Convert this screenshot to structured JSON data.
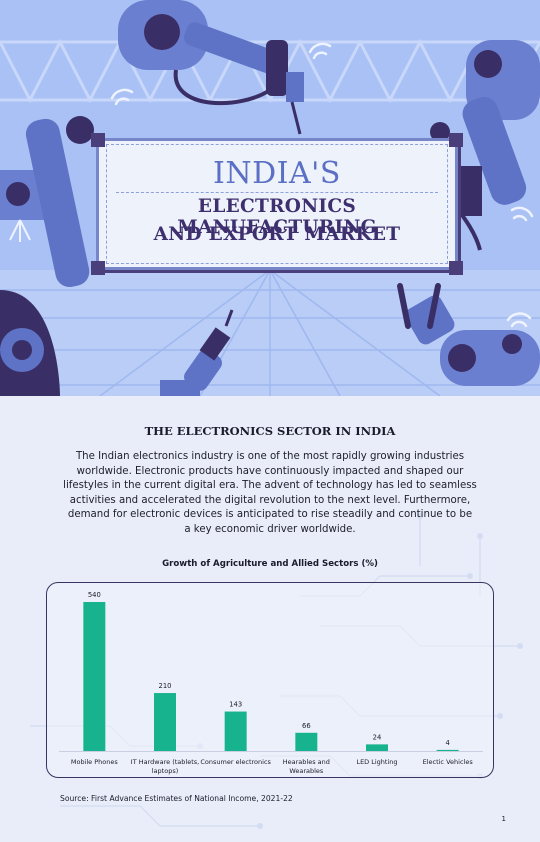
{
  "hero": {
    "title_line1": "INDIA'S",
    "title_line2": "ELECTRONICS MANUFACTURING",
    "title_line3": "AND EXPORT MARKET",
    "colors": {
      "sky": "#a9c1f4",
      "robot": "#5e73c6",
      "robot_dark": "#3a2e66",
      "banner_text": "#5b6fc4"
    }
  },
  "section": {
    "title": "THE ELECTRONICS SECTOR IN INDIA",
    "paragraph_lines": [
      "The Indian electronics industry is one of the most rapidly growing industries",
      "worldwide. Electronic products have continuously impacted and shaped our",
      "lifestyles in the current digital era. The advent of technology has led to seamless",
      "activities and accelerated the digital revolution to the next level. Furthermore,",
      "demand for electronic devices is anticipated to rise steadily and continue to be",
      "a key economic driver worldwide."
    ]
  },
  "chart_data": {
    "type": "bar",
    "title": "Growth of Agriculture and Allied Sectors (%)",
    "categories": [
      [
        "Mobile Phones"
      ],
      [
        "IT Hardware (tablets,",
        "laptops)"
      ],
      [
        "Consumer electronics"
      ],
      [
        "Hearables and",
        "Wearables"
      ],
      [
        "LED Lighting"
      ],
      [
        "Electic Vehicles"
      ]
    ],
    "values": [
      540,
      210,
      143,
      66,
      24,
      4
    ],
    "ylim": [
      0,
      540
    ],
    "bar_color": "#17b38e",
    "grid": false,
    "xlabel": "",
    "ylabel": ""
  },
  "footer": {
    "source": "Source: First Advance Estimates of National Income, 2021-22",
    "page_number": "1"
  }
}
